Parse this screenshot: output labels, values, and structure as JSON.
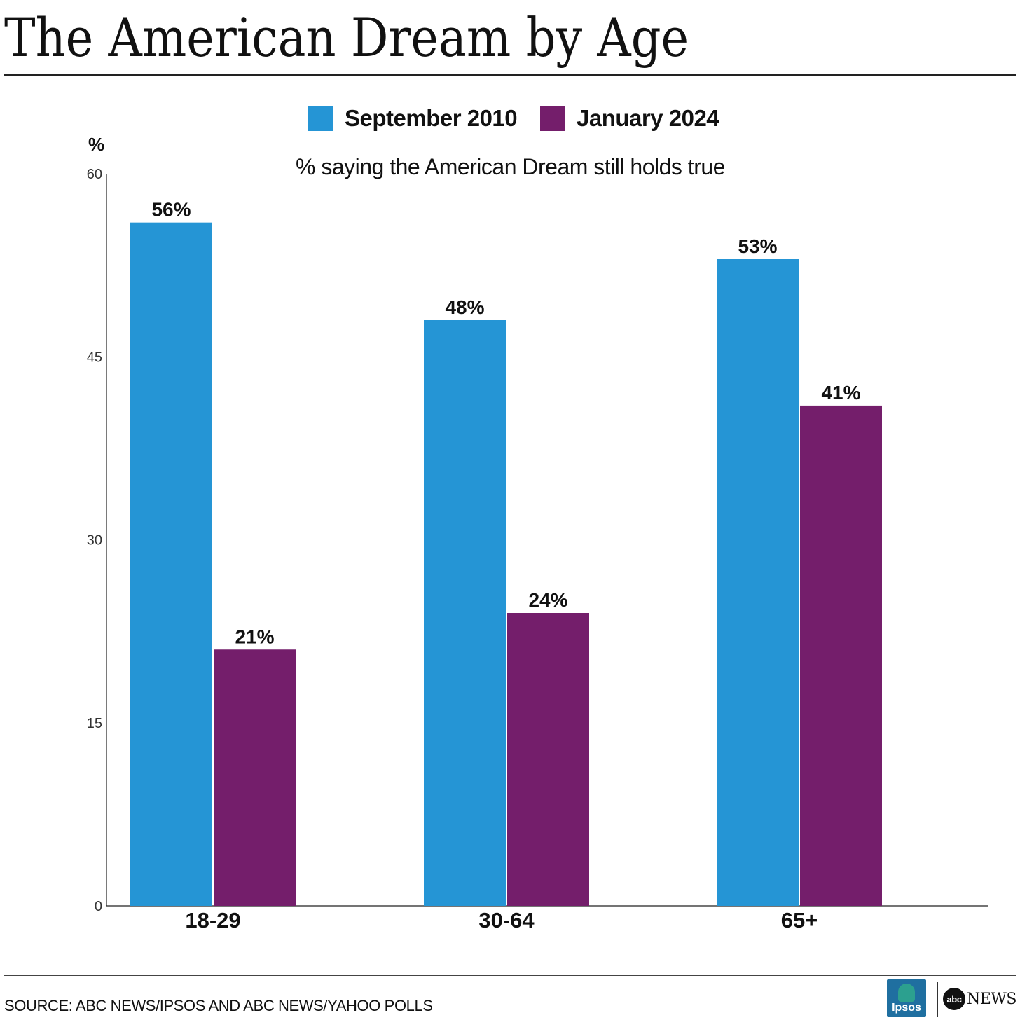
{
  "title": "The American Dream by Age",
  "subtitle": "% saying the American Dream still holds true",
  "source": "SOURCE: ABC NEWS/IPSOS AND ABC NEWS/YAHOO POLLS",
  "logos": {
    "ipsos": "Ipsos",
    "abc_mark": "abc",
    "abc_news": "NEWS"
  },
  "chart_data": {
    "type": "bar",
    "title": "The American Dream by Age",
    "subtitle": "% saying the American Dream still holds true",
    "xlabel": "",
    "ylabel": "%",
    "categories": [
      "18-29",
      "30-64",
      "65+"
    ],
    "series": [
      {
        "name": "September 2010",
        "color": "#2595d5",
        "values": [
          56,
          48,
          53
        ],
        "labels": [
          "56%",
          "48%",
          "53%"
        ]
      },
      {
        "name": "January 2024",
        "color": "#741e6b",
        "values": [
          21,
          24,
          41
        ],
        "labels": [
          "21%",
          "24%",
          "41%"
        ]
      }
    ],
    "ylim": [
      0,
      60
    ],
    "yticks": [
      0,
      15,
      30,
      45,
      60
    ],
    "grid": false,
    "legend_position": "top-center"
  }
}
